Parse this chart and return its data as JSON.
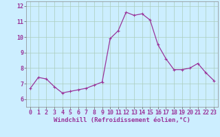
{
  "x": [
    0,
    1,
    2,
    3,
    4,
    5,
    6,
    7,
    8,
    9,
    10,
    11,
    12,
    13,
    14,
    15,
    16,
    17,
    18,
    19,
    20,
    21,
    22,
    23
  ],
  "y": [
    6.7,
    7.4,
    7.3,
    6.8,
    6.4,
    6.5,
    6.6,
    6.7,
    6.9,
    7.1,
    9.9,
    10.4,
    11.6,
    11.4,
    11.5,
    11.1,
    9.5,
    8.6,
    7.9,
    7.9,
    8.0,
    8.3,
    7.7,
    7.2
  ],
  "line_color": "#993399",
  "marker": "+",
  "marker_size": 3,
  "marker_lw": 0.8,
  "background_color": "#cceeff",
  "grid_color": "#aaccbb",
  "xlabel": "Windchill (Refroidissement éolien,°C)",
  "xlabel_fontsize": 6.5,
  "ylim": [
    5.5,
    12.3
  ],
  "xlim": [
    -0.5,
    23.5
  ],
  "yticks": [
    6,
    7,
    8,
    9,
    10,
    11,
    12
  ],
  "xticks": [
    0,
    1,
    2,
    3,
    4,
    5,
    6,
    7,
    8,
    9,
    10,
    11,
    12,
    13,
    14,
    15,
    16,
    17,
    18,
    19,
    20,
    21,
    22,
    23
  ],
  "tick_fontsize": 6,
  "line_width": 0.9
}
